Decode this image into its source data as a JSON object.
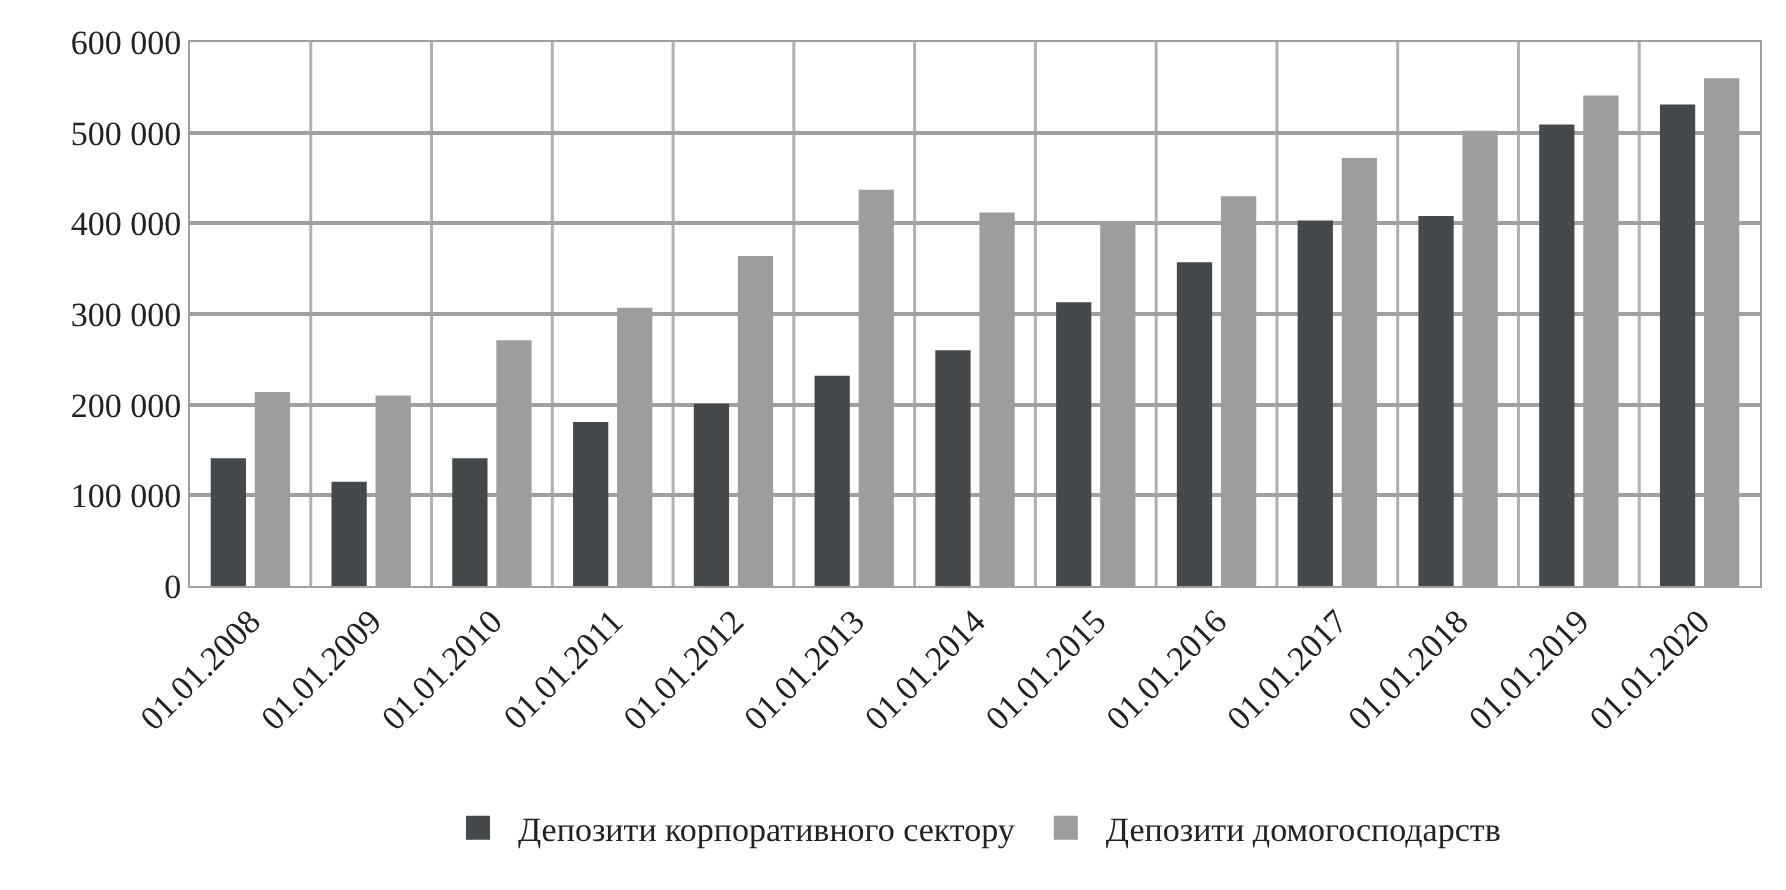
{
  "chart_data": {
    "type": "bar",
    "categories": [
      "01.01.2008",
      "01.01.2009",
      "01.01.2010",
      "01.01.2011",
      "01.01.2012",
      "01.01.2013",
      "01.01.2014",
      "01.01.2015",
      "01.01.2016",
      "01.01.2017",
      "01.01.2018",
      "01.01.2019",
      "01.01.2020"
    ],
    "series": [
      {
        "name": "Депозити корпоративного сектору",
        "color": "#46494b",
        "values": [
          141000,
          115000,
          141000,
          181000,
          201000,
          232000,
          260000,
          313000,
          357000,
          403000,
          408000,
          509000,
          531000
        ]
      },
      {
        "name": "Депозити домогосподарств",
        "color": "#9b9d9e",
        "values": [
          214000,
          210000,
          271000,
          307000,
          364000,
          437000,
          412000,
          400000,
          430000,
          472000,
          502000,
          541000,
          560000
        ]
      }
    ],
    "ylim": [
      0,
      600000
    ],
    "yticks": [
      0,
      {
        "value": 100000,
        "label": "100 000"
      },
      {
        "value": 200000,
        "label": "200 000"
      },
      {
        "value": 300000,
        "label": "300 000"
      },
      {
        "value": 400000,
        "label": "400 000"
      },
      {
        "value": 500000,
        "label": "500 000"
      },
      {
        "value": 600000,
        "label": "600 000"
      }
    ],
    "grid": true,
    "legend": "bottom"
  }
}
